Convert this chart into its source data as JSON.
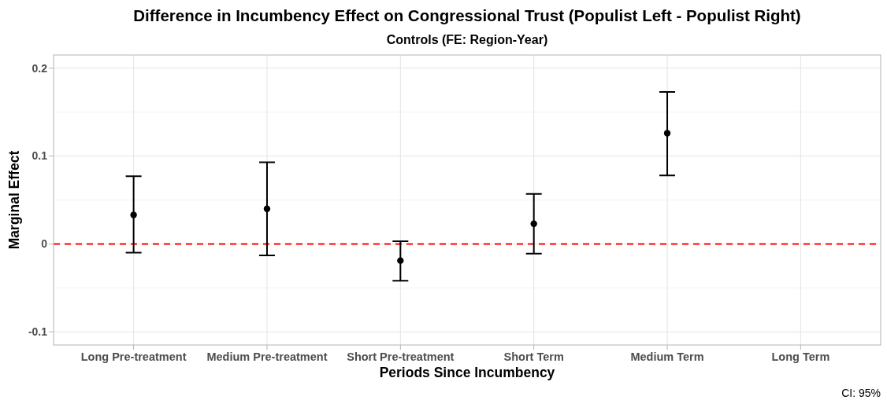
{
  "chart_data": {
    "type": "scatter",
    "title": "Difference in Incumbency Effect on Congressional Trust (Populist Left - Populist Right)",
    "subtitle": "Controls (FE: Region-Year)",
    "xlabel": "Periods Since Incumbency",
    "ylabel": "Marginal Effect",
    "categories": [
      "Long Pre-treatment",
      "Medium Pre-treatment",
      "Short Pre-treatment",
      "Short Term",
      "Medium Term",
      "Long Term"
    ],
    "values": [
      0.033,
      0.04,
      -0.019,
      0.023,
      0.126,
      null
    ],
    "errors": [
      [
        -0.01,
        0.077
      ],
      [
        -0.013,
        0.093
      ],
      [
        -0.042,
        0.003
      ],
      [
        -0.011,
        0.057
      ],
      [
        0.078,
        0.173
      ],
      null
    ],
    "color": "#000000",
    "marker": "circle",
    "ylim": [
      -0.115,
      0.215
    ],
    "yticks": [
      -0.1,
      0,
      0.1,
      0.2
    ],
    "grid": true,
    "ref_lines": [
      {
        "axis": "y",
        "value": 0,
        "color": "#ff0000",
        "line_style": "dashed"
      }
    ],
    "annotations": [
      "CI: 95%"
    ]
  }
}
